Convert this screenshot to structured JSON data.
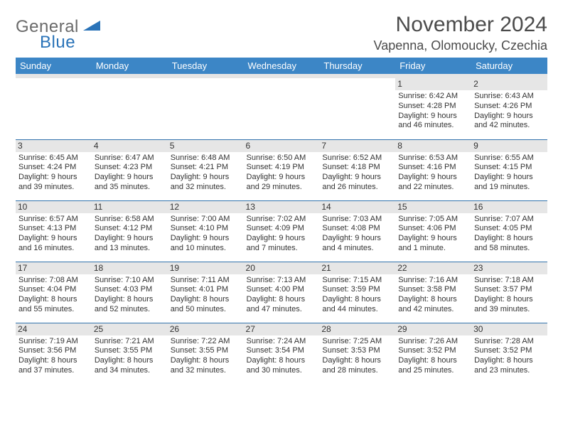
{
  "logo": {
    "general": "General",
    "blue": "Blue"
  },
  "title": "November 2024",
  "location": "Vapenna, Olomoucky, Czechia",
  "colors": {
    "header_bg": "#3c86c6",
    "header_text": "#ffffff",
    "rule": "#3273ad",
    "daynum_bg": "#e6e6e6",
    "body_text": "#333333",
    "logo_gray": "#6a6a6a",
    "logo_blue": "#2a73b8",
    "spacer_bg": "#e5e5e5"
  },
  "day_headers": [
    "Sunday",
    "Monday",
    "Tuesday",
    "Wednesday",
    "Thursday",
    "Friday",
    "Saturday"
  ],
  "weeks": [
    [
      {
        "n": "",
        "sr": "",
        "ss": "",
        "dl": ""
      },
      {
        "n": "",
        "sr": "",
        "ss": "",
        "dl": ""
      },
      {
        "n": "",
        "sr": "",
        "ss": "",
        "dl": ""
      },
      {
        "n": "",
        "sr": "",
        "ss": "",
        "dl": ""
      },
      {
        "n": "",
        "sr": "",
        "ss": "",
        "dl": ""
      },
      {
        "n": "1",
        "sr": "Sunrise: 6:42 AM",
        "ss": "Sunset: 4:28 PM",
        "dl": "Daylight: 9 hours and 46 minutes."
      },
      {
        "n": "2",
        "sr": "Sunrise: 6:43 AM",
        "ss": "Sunset: 4:26 PM",
        "dl": "Daylight: 9 hours and 42 minutes."
      }
    ],
    [
      {
        "n": "3",
        "sr": "Sunrise: 6:45 AM",
        "ss": "Sunset: 4:24 PM",
        "dl": "Daylight: 9 hours and 39 minutes."
      },
      {
        "n": "4",
        "sr": "Sunrise: 6:47 AM",
        "ss": "Sunset: 4:23 PM",
        "dl": "Daylight: 9 hours and 35 minutes."
      },
      {
        "n": "5",
        "sr": "Sunrise: 6:48 AM",
        "ss": "Sunset: 4:21 PM",
        "dl": "Daylight: 9 hours and 32 minutes."
      },
      {
        "n": "6",
        "sr": "Sunrise: 6:50 AM",
        "ss": "Sunset: 4:19 PM",
        "dl": "Daylight: 9 hours and 29 minutes."
      },
      {
        "n": "7",
        "sr": "Sunrise: 6:52 AM",
        "ss": "Sunset: 4:18 PM",
        "dl": "Daylight: 9 hours and 26 minutes."
      },
      {
        "n": "8",
        "sr": "Sunrise: 6:53 AM",
        "ss": "Sunset: 4:16 PM",
        "dl": "Daylight: 9 hours and 22 minutes."
      },
      {
        "n": "9",
        "sr": "Sunrise: 6:55 AM",
        "ss": "Sunset: 4:15 PM",
        "dl": "Daylight: 9 hours and 19 minutes."
      }
    ],
    [
      {
        "n": "10",
        "sr": "Sunrise: 6:57 AM",
        "ss": "Sunset: 4:13 PM",
        "dl": "Daylight: 9 hours and 16 minutes."
      },
      {
        "n": "11",
        "sr": "Sunrise: 6:58 AM",
        "ss": "Sunset: 4:12 PM",
        "dl": "Daylight: 9 hours and 13 minutes."
      },
      {
        "n": "12",
        "sr": "Sunrise: 7:00 AM",
        "ss": "Sunset: 4:10 PM",
        "dl": "Daylight: 9 hours and 10 minutes."
      },
      {
        "n": "13",
        "sr": "Sunrise: 7:02 AM",
        "ss": "Sunset: 4:09 PM",
        "dl": "Daylight: 9 hours and 7 minutes."
      },
      {
        "n": "14",
        "sr": "Sunrise: 7:03 AM",
        "ss": "Sunset: 4:08 PM",
        "dl": "Daylight: 9 hours and 4 minutes."
      },
      {
        "n": "15",
        "sr": "Sunrise: 7:05 AM",
        "ss": "Sunset: 4:06 PM",
        "dl": "Daylight: 9 hours and 1 minute."
      },
      {
        "n": "16",
        "sr": "Sunrise: 7:07 AM",
        "ss": "Sunset: 4:05 PM",
        "dl": "Daylight: 8 hours and 58 minutes."
      }
    ],
    [
      {
        "n": "17",
        "sr": "Sunrise: 7:08 AM",
        "ss": "Sunset: 4:04 PM",
        "dl": "Daylight: 8 hours and 55 minutes."
      },
      {
        "n": "18",
        "sr": "Sunrise: 7:10 AM",
        "ss": "Sunset: 4:03 PM",
        "dl": "Daylight: 8 hours and 52 minutes."
      },
      {
        "n": "19",
        "sr": "Sunrise: 7:11 AM",
        "ss": "Sunset: 4:01 PM",
        "dl": "Daylight: 8 hours and 50 minutes."
      },
      {
        "n": "20",
        "sr": "Sunrise: 7:13 AM",
        "ss": "Sunset: 4:00 PM",
        "dl": "Daylight: 8 hours and 47 minutes."
      },
      {
        "n": "21",
        "sr": "Sunrise: 7:15 AM",
        "ss": "Sunset: 3:59 PM",
        "dl": "Daylight: 8 hours and 44 minutes."
      },
      {
        "n": "22",
        "sr": "Sunrise: 7:16 AM",
        "ss": "Sunset: 3:58 PM",
        "dl": "Daylight: 8 hours and 42 minutes."
      },
      {
        "n": "23",
        "sr": "Sunrise: 7:18 AM",
        "ss": "Sunset: 3:57 PM",
        "dl": "Daylight: 8 hours and 39 minutes."
      }
    ],
    [
      {
        "n": "24",
        "sr": "Sunrise: 7:19 AM",
        "ss": "Sunset: 3:56 PM",
        "dl": "Daylight: 8 hours and 37 minutes."
      },
      {
        "n": "25",
        "sr": "Sunrise: 7:21 AM",
        "ss": "Sunset: 3:55 PM",
        "dl": "Daylight: 8 hours and 34 minutes."
      },
      {
        "n": "26",
        "sr": "Sunrise: 7:22 AM",
        "ss": "Sunset: 3:55 PM",
        "dl": "Daylight: 8 hours and 32 minutes."
      },
      {
        "n": "27",
        "sr": "Sunrise: 7:24 AM",
        "ss": "Sunset: 3:54 PM",
        "dl": "Daylight: 8 hours and 30 minutes."
      },
      {
        "n": "28",
        "sr": "Sunrise: 7:25 AM",
        "ss": "Sunset: 3:53 PM",
        "dl": "Daylight: 8 hours and 28 minutes."
      },
      {
        "n": "29",
        "sr": "Sunrise: 7:26 AM",
        "ss": "Sunset: 3:52 PM",
        "dl": "Daylight: 8 hours and 25 minutes."
      },
      {
        "n": "30",
        "sr": "Sunrise: 7:28 AM",
        "ss": "Sunset: 3:52 PM",
        "dl": "Daylight: 8 hours and 23 minutes."
      }
    ]
  ]
}
